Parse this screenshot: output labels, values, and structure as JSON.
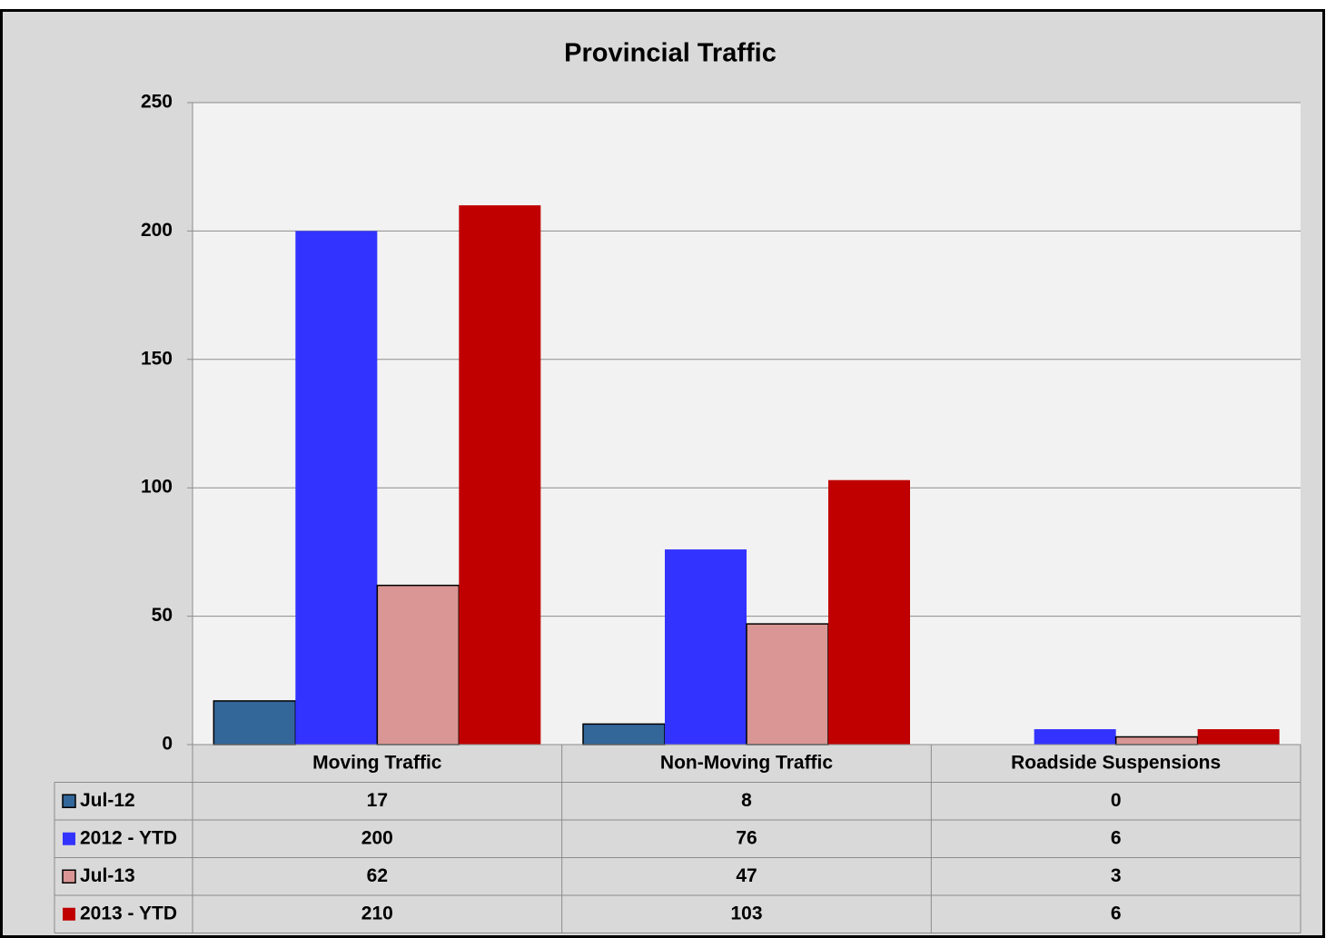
{
  "chart_data": {
    "type": "bar",
    "title": "Provincial Traffic",
    "categories": [
      "Moving Traffic",
      "Non-Moving Traffic",
      "Roadside Suspensions"
    ],
    "series": [
      {
        "name": "Jul-12",
        "color": "#336699",
        "edgecolor": "#000000",
        "values": [
          17,
          8,
          0
        ]
      },
      {
        "name": "2012 - YTD",
        "color": "#3333ff",
        "values": [
          200,
          76,
          6
        ]
      },
      {
        "name": "Jul-13",
        "color": "#d99694",
        "edgecolor": "#000000",
        "values": [
          62,
          47,
          3
        ]
      },
      {
        "name": "2013 - YTD",
        "color": "#c00000",
        "values": [
          210,
          103,
          6
        ]
      }
    ],
    "ylim": [
      0,
      250
    ],
    "yticks": [
      0,
      50,
      100,
      150,
      200,
      250
    ],
    "grid": true,
    "data_table": true
  }
}
